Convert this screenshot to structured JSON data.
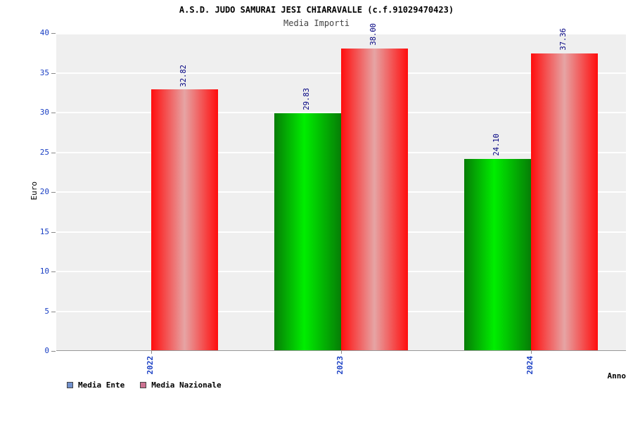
{
  "header": {
    "title": "A.S.D. JUDO SAMURAI JESI CHIARAVALLE (c.f.91029470423)",
    "subtitle": "Media Importi"
  },
  "axes": {
    "y_label": "Euro",
    "x_label": "Anno"
  },
  "legend": [
    {
      "label": "Media Ente",
      "swatch_color": "#7291cc"
    },
    {
      "label": "Media Nazionale",
      "swatch_color": "#cc7291"
    }
  ],
  "chart_data": {
    "type": "bar",
    "title": "A.S.D. JUDO SAMURAI JESI CHIARAVALLE (c.f.91029470423)",
    "subtitle": "Media Importi",
    "xlabel": "Anno",
    "ylabel": "Euro",
    "ylim": [
      0,
      40
    ],
    "ytick_step": 5,
    "grid": true,
    "plot_background": "#efefef",
    "gridline_color": "#ffffff",
    "tick_label_color": "#1a3fc4",
    "value_label_color": "#000080",
    "legend_position": "bottom-left",
    "categories": [
      "2022",
      "2023",
      "2024"
    ],
    "series": [
      {
        "name": "Media Ente",
        "values": [
          0,
          29.83,
          24.1
        ],
        "labels": [
          "",
          "29.83",
          "24.10"
        ],
        "gradient": [
          "#067d06",
          "#00ee00 45%",
          "#067d06"
        ]
      },
      {
        "name": "Media Nazionale",
        "values": [
          32.82,
          38.0,
          37.36
        ],
        "labels": [
          "32.82",
          "38.00",
          "37.36"
        ],
        "gradient": [
          "#ff0d0d",
          "#e6a4a4 50%",
          "#ff0d0d"
        ]
      }
    ]
  }
}
